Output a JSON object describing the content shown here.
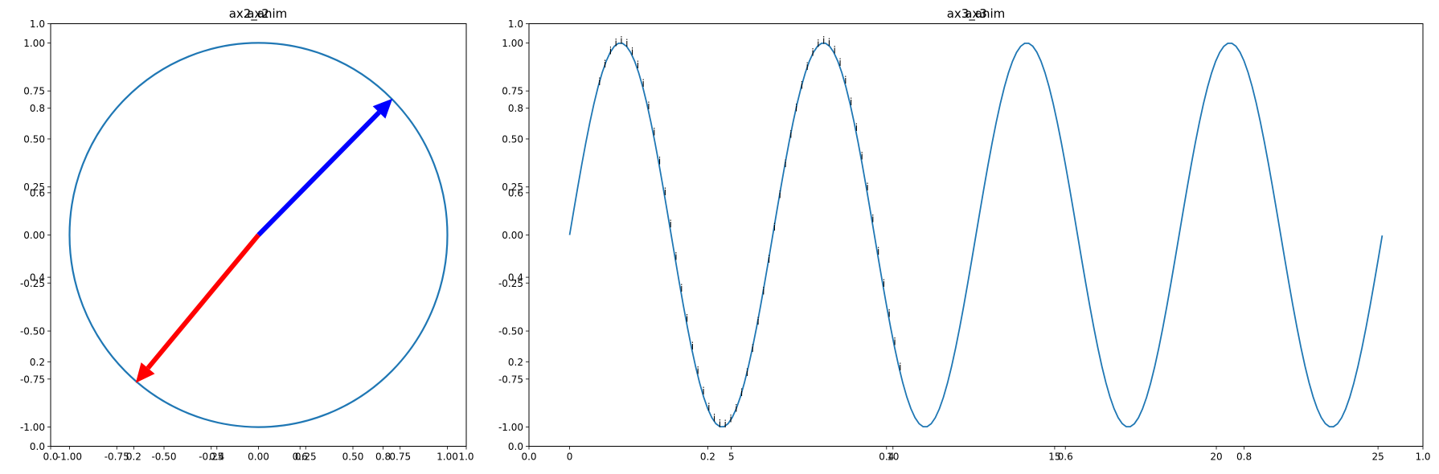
{
  "chart_data": [
    {
      "type": "line",
      "title_left": "ax2",
      "title_right": "ax2_anim",
      "xticks": [
        "-1.00",
        "-0.75",
        "-0.50",
        "-0.25",
        "0.00",
        "0.25",
        "0.50",
        "0.75",
        "1.00"
      ],
      "yticks": [
        "-1.00",
        "-0.75",
        "-0.50",
        "-0.25",
        "0.00",
        "0.25",
        "0.50",
        "0.75",
        "1.00"
      ],
      "xlim": [
        -1.1,
        1.1
      ],
      "ylim": [
        -1.1,
        1.1
      ],
      "series": [
        {
          "kind": "circle",
          "center": [
            0,
            0
          ],
          "radius": 1.0,
          "color": "#1f77b4"
        }
      ],
      "arrows": [
        {
          "from": [
            0,
            0
          ],
          "to": [
            0.71,
            0.71
          ],
          "color": "#0000ff"
        },
        {
          "from": [
            0,
            0
          ],
          "to": [
            -0.65,
            -0.77
          ],
          "color": "#ff0000"
        }
      ],
      "overlay_axis": {
        "xticks": [
          "0.0",
          "0.2",
          "0.4",
          "0.6",
          "0.8",
          "1.0"
        ],
        "yticks": [
          "0.0",
          "0.2",
          "0.4",
          "0.6",
          "0.8",
          "1.0"
        ],
        "xlim": [
          0,
          1
        ],
        "ylim": [
          0,
          1
        ]
      }
    },
    {
      "type": "line",
      "title_left": "ax3",
      "title_right": "ax3_anim",
      "xticks": [
        "0",
        "5",
        "10",
        "15",
        "20",
        "25"
      ],
      "yticks": [
        "-1.00",
        "-0.75",
        "-0.50",
        "-0.25",
        "0.00",
        "0.25",
        "0.50",
        "0.75",
        "1.00"
      ],
      "xlim": [
        -1.257,
        26.389
      ],
      "ylim": [
        -1.1,
        1.1
      ],
      "series": [
        {
          "kind": "function",
          "expr": "sin(x)",
          "x_range": [
            0,
            25.13
          ],
          "color": "#1f77b4"
        }
      ],
      "marker_label": "i",
      "marker_x_range": [
        0.9,
        10.2
      ],
      "marker_count": 56,
      "overlay_axis": {
        "xticks": [
          "0.0",
          "0.2",
          "0.4",
          "0.6",
          "0.8",
          "1.0"
        ],
        "yticks": [
          "0.0",
          "0.2",
          "0.4",
          "0.6",
          "0.8",
          "1.0"
        ],
        "xlim": [
          0,
          1
        ],
        "ylim": [
          0,
          1
        ]
      }
    }
  ],
  "colors": {
    "line": "#1f77b4",
    "arrow_blue": "#0000ff",
    "arrow_red": "#ff0000",
    "axes": "#000000"
  }
}
